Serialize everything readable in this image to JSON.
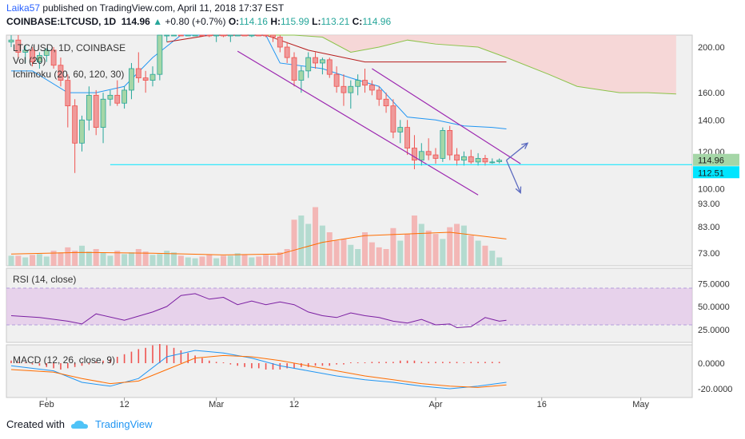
{
  "header": {
    "author": "Laika57",
    "published": "published on TradingView.com, April 11, 2018 17:37 EST",
    "symbol": "COINBASE:LTCUSD, 1D",
    "price": "114.96",
    "change_icon": "up-triangle-icon",
    "change": "+0.80 (+0.7%)",
    "o_label": "O:",
    "o_value": "114.16",
    "h_label": "H:",
    "h_value": "115.99",
    "l_label": "L:",
    "l_value": "113.21",
    "c_label": "C:",
    "c_value": "114.96"
  },
  "legend": {
    "main": "LTC/USD, 1D, COINBASE",
    "vol": "Vol (20)",
    "ichimoku": "Ichimoku (20, 60, 120, 30)",
    "rsi": "RSI (14, close)",
    "macd": "MACD (12, 26, close, 9)"
  },
  "footer": {
    "created_with": "Created with",
    "brand": "TradingView",
    "brand_icon": "tradingview-cloud-icon"
  },
  "colors": {
    "up": "#26a69a",
    "down": "#ef5350",
    "channel": "#9c27b0",
    "tenkan": "#2196f3",
    "kijun": "#b71c1c",
    "cloud": "#f8cfcf",
    "rsi": "#7b1fa2",
    "rsi_band": "#e1bee7",
    "macd": "#2196f3",
    "signal": "#ff6d00",
    "price_line": "#00e5ff"
  },
  "chart_data": {
    "type": "candlestick",
    "price_axis": {
      "ticks": [
        "200.00",
        "160.00",
        "140.00",
        "120.00",
        "100.00",
        "93.00",
        "83.00",
        "73.00"
      ],
      "tick_values": [
        200,
        160,
        140,
        120,
        100,
        93,
        83,
        73
      ],
      "scale": "log",
      "last_price_label": "114.96",
      "support_label": "112.51"
    },
    "rsi_axis": {
      "ticks": [
        "75.0000",
        "50.0000",
        "25.0000"
      ],
      "tick_values": [
        75,
        50,
        25
      ],
      "band": [
        30,
        70
      ]
    },
    "macd_axis": {
      "ticks": [
        "0.0000",
        "-20.0000"
      ],
      "tick_values": [
        0,
        -20
      ]
    },
    "time_axis": {
      "labels": [
        "Feb",
        "12",
        "Mar",
        "12",
        "Apr",
        "16",
        "May"
      ],
      "label_days": [
        5,
        16,
        29,
        40,
        60,
        75,
        89
      ]
    },
    "candles": [
      [
        205,
        212,
        200,
        207
      ],
      [
        207,
        214,
        190,
        195
      ],
      [
        195,
        202,
        185,
        197
      ],
      [
        197,
        200,
        182,
        186
      ],
      [
        186,
        195,
        180,
        192
      ],
      [
        192,
        199,
        186,
        197
      ],
      [
        197,
        200,
        180,
        183
      ],
      [
        183,
        190,
        165,
        170
      ],
      [
        170,
        175,
        135,
        150
      ],
      [
        150,
        155,
        108,
        125
      ],
      [
        125,
        143,
        120,
        140
      ],
      [
        140,
        165,
        133,
        158
      ],
      [
        158,
        162,
        130,
        135
      ],
      [
        135,
        160,
        125,
        155
      ],
      [
        155,
        162,
        150,
        158
      ],
      [
        158,
        170,
        150,
        152
      ],
      [
        152,
        165,
        148,
        162
      ],
      [
        162,
        185,
        155,
        180
      ],
      [
        180,
        195,
        168,
        172
      ],
      [
        172,
        178,
        160,
        170
      ],
      [
        170,
        182,
        165,
        175
      ],
      [
        175,
        230,
        170,
        215
      ],
      [
        215,
        230,
        205,
        220
      ],
      [
        220,
        250,
        215,
        235
      ],
      [
        235,
        245,
        220,
        225
      ],
      [
        225,
        235,
        215,
        230
      ],
      [
        230,
        240,
        220,
        238
      ],
      [
        238,
        250,
        225,
        228
      ],
      [
        228,
        232,
        210,
        215
      ],
      [
        215,
        225,
        205,
        220
      ],
      [
        220,
        228,
        210,
        212
      ],
      [
        212,
        222,
        205,
        218
      ],
      [
        218,
        230,
        215,
        225
      ],
      [
        225,
        232,
        215,
        218
      ],
      [
        218,
        225,
        210,
        222
      ],
      [
        222,
        228,
        215,
        220
      ],
      [
        220,
        225,
        210,
        215
      ],
      [
        215,
        222,
        205,
        210
      ],
      [
        210,
        215,
        195,
        200
      ],
      [
        200,
        205,
        185,
        190
      ],
      [
        190,
        195,
        165,
        170
      ],
      [
        170,
        182,
        160,
        178
      ],
      [
        178,
        195,
        172,
        190
      ],
      [
        190,
        195,
        180,
        185
      ],
      [
        185,
        190,
        175,
        188
      ],
      [
        188,
        190,
        172,
        175
      ],
      [
        175,
        182,
        160,
        165
      ],
      [
        165,
        175,
        150,
        160
      ],
      [
        160,
        170,
        148,
        165
      ],
      [
        165,
        175,
        158,
        170
      ],
      [
        170,
        180,
        160,
        166
      ],
      [
        166,
        170,
        158,
        162
      ],
      [
        162,
        165,
        150,
        155
      ],
      [
        155,
        160,
        145,
        150
      ],
      [
        150,
        155,
        128,
        132
      ],
      [
        132,
        140,
        125,
        135
      ],
      [
        135,
        140,
        118,
        122
      ],
      [
        122,
        130,
        110,
        115
      ],
      [
        115,
        125,
        112,
        120
      ],
      [
        120,
        128,
        115,
        118
      ],
      [
        118,
        122,
        113,
        116
      ],
      [
        116,
        135,
        114,
        133
      ],
      [
        133,
        136,
        115,
        118
      ],
      [
        118,
        122,
        112,
        115
      ],
      [
        115,
        120,
        112,
        117
      ],
      [
        117,
        121,
        113,
        114
      ],
      [
        114,
        119,
        112,
        116
      ],
      [
        116,
        118,
        112,
        114
      ],
      [
        114,
        116,
        113,
        114
      ],
      [
        114.16,
        115.99,
        113.21,
        114.96
      ]
    ],
    "tenkan": [
      [
        0,
        178
      ],
      [
        3,
        178
      ],
      [
        8,
        160
      ],
      [
        12,
        160
      ],
      [
        16,
        165
      ],
      [
        20,
        190
      ],
      [
        24,
        215
      ],
      [
        28,
        225
      ],
      [
        32,
        222
      ],
      [
        36,
        218
      ],
      [
        38,
        185
      ],
      [
        44,
        180
      ],
      [
        48,
        172
      ],
      [
        52,
        165
      ],
      [
        56,
        142
      ],
      [
        60,
        140
      ],
      [
        64,
        136
      ],
      [
        68,
        135
      ],
      [
        70,
        134
      ]
    ],
    "kijun": [
      [
        22,
        205
      ],
      [
        28,
        212
      ],
      [
        36,
        212
      ],
      [
        42,
        197
      ],
      [
        50,
        186
      ],
      [
        56,
        186
      ],
      [
        70,
        186
      ]
    ],
    "cloud_a": [
      [
        36,
        240
      ],
      [
        44,
        240
      ],
      [
        50,
        240
      ],
      [
        56,
        240
      ],
      [
        62,
        240
      ],
      [
        70,
        240
      ],
      [
        80,
        240
      ],
      [
        90,
        240
      ],
      [
        94,
        240
      ]
    ],
    "cloud_b": [
      [
        36,
        240
      ],
      [
        40,
        235
      ],
      [
        44,
        210
      ],
      [
        48,
        195
      ],
      [
        52,
        200
      ],
      [
        56,
        207
      ],
      [
        60,
        203
      ],
      [
        66,
        200
      ],
      [
        70,
        190
      ],
      [
        76,
        175
      ],
      [
        80,
        165
      ],
      [
        86,
        160
      ],
      [
        90,
        160
      ],
      [
        94,
        159
      ]
    ],
    "channel_upper": [
      [
        51,
        180
      ],
      [
        72,
        113
      ]
    ],
    "channel_lower": [
      [
        32,
        196
      ],
      [
        66,
        97
      ]
    ],
    "support_level": 112.51,
    "projection": [
      [
        70,
        114.96
      ],
      [
        73,
        125
      ],
      [
        70,
        114.96
      ],
      [
        72,
        98
      ]
    ],
    "volume": [
      12,
      12,
      10,
      13,
      14,
      11,
      18,
      16,
      22,
      18,
      24,
      17,
      20,
      16,
      12,
      18,
      14,
      16,
      20,
      17,
      13,
      14,
      18,
      16,
      12,
      10,
      9,
      11,
      13,
      9,
      12,
      12,
      15,
      13,
      10,
      11,
      13,
      12,
      16,
      20,
      55,
      60,
      50,
      70,
      48,
      40,
      30,
      32,
      25,
      20,
      40,
      28,
      22,
      20,
      45,
      30,
      38,
      60,
      50,
      42,
      38,
      32,
      46,
      50,
      48,
      36,
      30,
      24,
      18,
      10
    ],
    "volume_ma": [
      [
        0,
        14
      ],
      [
        10,
        16
      ],
      [
        20,
        15
      ],
      [
        30,
        13
      ],
      [
        38,
        14
      ],
      [
        44,
        28
      ],
      [
        50,
        36
      ],
      [
        56,
        38
      ],
      [
        62,
        40
      ],
      [
        70,
        32
      ]
    ],
    "rsi": [
      [
        0,
        40
      ],
      [
        4,
        38
      ],
      [
        8,
        34
      ],
      [
        10,
        31
      ],
      [
        12,
        42
      ],
      [
        16,
        35
      ],
      [
        20,
        44
      ],
      [
        22,
        50
      ],
      [
        24,
        62
      ],
      [
        26,
        64
      ],
      [
        28,
        58
      ],
      [
        30,
        60
      ],
      [
        32,
        52
      ],
      [
        34,
        56
      ],
      [
        36,
        52
      ],
      [
        38,
        55
      ],
      [
        40,
        52
      ],
      [
        42,
        44
      ],
      [
        44,
        40
      ],
      [
        46,
        38
      ],
      [
        48,
        43
      ],
      [
        50,
        40
      ],
      [
        52,
        38
      ],
      [
        54,
        34
      ],
      [
        56,
        32
      ],
      [
        58,
        36
      ],
      [
        60,
        30
      ],
      [
        62,
        31
      ],
      [
        63,
        27
      ],
      [
        65,
        28
      ],
      [
        67,
        38
      ],
      [
        68,
        36
      ],
      [
        69,
        34
      ],
      [
        70,
        35
      ]
    ],
    "macd": [
      [
        0,
        -2
      ],
      [
        6,
        -6
      ],
      [
        10,
        -15
      ],
      [
        14,
        -18
      ],
      [
        18,
        -12
      ],
      [
        22,
        5
      ],
      [
        26,
        10
      ],
      [
        30,
        8
      ],
      [
        34,
        4
      ],
      [
        38,
        -2
      ],
      [
        42,
        -6
      ],
      [
        46,
        -10
      ],
      [
        50,
        -13
      ],
      [
        54,
        -15
      ],
      [
        58,
        -18
      ],
      [
        62,
        -20
      ],
      [
        66,
        -18
      ],
      [
        70,
        -15
      ]
    ],
    "signal": [
      [
        0,
        -5
      ],
      [
        6,
        -7
      ],
      [
        10,
        -12
      ],
      [
        14,
        -16
      ],
      [
        18,
        -14
      ],
      [
        22,
        -5
      ],
      [
        26,
        4
      ],
      [
        30,
        6
      ],
      [
        34,
        5
      ],
      [
        38,
        2
      ],
      [
        42,
        -2
      ],
      [
        46,
        -6
      ],
      [
        50,
        -10
      ],
      [
        54,
        -13
      ],
      [
        58,
        -16
      ],
      [
        62,
        -18
      ],
      [
        66,
        -19
      ],
      [
        70,
        -17
      ]
    ],
    "macd_hist": [
      2,
      1,
      0,
      -1,
      -2,
      -3,
      -4,
      -5,
      -4,
      -3,
      -2,
      -1,
      1,
      2,
      3,
      5,
      7,
      9,
      11,
      12,
      14,
      15,
      14,
      12,
      10,
      8,
      6,
      4,
      2,
      1,
      0,
      -1,
      -2,
      -3,
      -4,
      -4,
      -5,
      -5,
      -5,
      -4,
      -4,
      -3,
      -3,
      -2,
      -2,
      -2,
      -1,
      -1,
      0,
      0,
      0,
      1,
      1,
      1,
      1,
      2,
      2,
      2,
      1,
      1,
      1,
      1,
      1,
      1,
      0,
      1,
      1,
      1,
      1,
      1
    ]
  }
}
